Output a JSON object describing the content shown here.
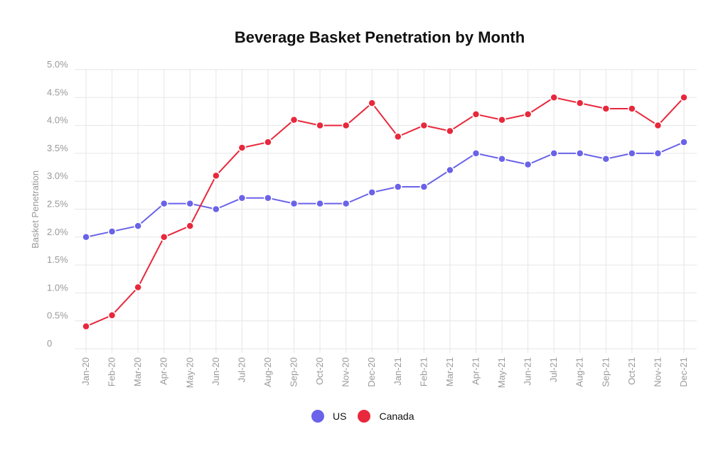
{
  "chart_data": {
    "type": "line",
    "title": "Beverage Basket Penetration by Month",
    "xlabel": "",
    "ylabel": "Basket Penetration",
    "ylim": [
      0,
      5.0
    ],
    "y_ticks": [
      "0",
      "0.5%",
      "1.0%",
      "1.5%",
      "2.0%",
      "2.5%",
      "3.0%",
      "3.5%",
      "4.0%",
      "4.5%",
      "5.0%"
    ],
    "grid": true,
    "legend_position": "bottom",
    "categories": [
      "Jan-20",
      "Feb-20",
      "Mar-20",
      "Apr-20",
      "May-20",
      "Jun-20",
      "Jul-20",
      "Aug-20",
      "Sep-20",
      "Oct-20",
      "Nov-20",
      "Dec-20",
      "Jan-21",
      "Feb-21",
      "Mar-21",
      "Apr-21",
      "May-21",
      "Jun-21",
      "Jul-21",
      "Aug-21",
      "Sep-21",
      "Oct-21",
      "Nov-21",
      "Dec-21"
    ],
    "series": [
      {
        "name": "US",
        "color": "#6a62e8",
        "values": [
          2.0,
          2.1,
          2.2,
          2.6,
          2.6,
          2.5,
          2.7,
          2.7,
          2.6,
          2.6,
          2.6,
          2.8,
          2.9,
          2.9,
          3.2,
          3.5,
          3.4,
          3.3,
          3.5,
          3.5,
          3.4,
          3.5,
          3.5,
          3.7
        ]
      },
      {
        "name": "Canada",
        "color": "#e8283c",
        "values": [
          0.4,
          0.6,
          1.1,
          2.0,
          2.2,
          3.1,
          3.6,
          3.7,
          4.1,
          4.0,
          4.0,
          4.4,
          3.8,
          4.0,
          3.9,
          4.2,
          4.1,
          4.2,
          4.5,
          4.4,
          4.3,
          4.3,
          4.0,
          4.5
        ]
      }
    ]
  }
}
